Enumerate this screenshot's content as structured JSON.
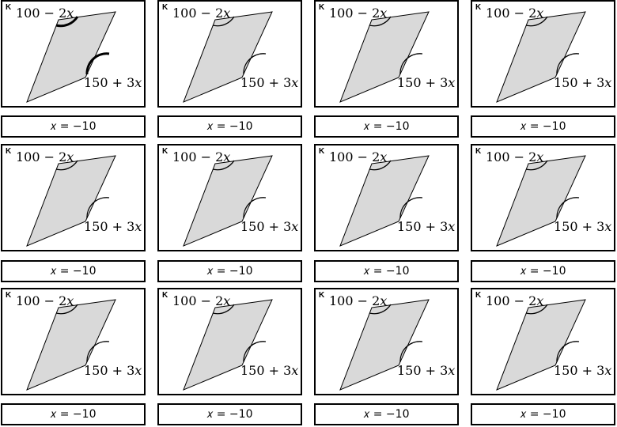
{
  "cards": [
    {
      "letter": "K",
      "angle_top": "100 − 2𝑥",
      "angle_bottom": "150 + 3𝑥",
      "answer": "𝑥 = −10"
    },
    {
      "letter": "K",
      "angle_top": "100 − 2𝑥",
      "angle_bottom": "150 + 3𝑥",
      "answer": "𝑥 = −10"
    },
    {
      "letter": "K",
      "angle_top": "100 − 2𝑥",
      "angle_bottom": "150 + 3𝑥",
      "answer": "𝑥 = −10"
    },
    {
      "letter": "K",
      "angle_top": "100 − 2𝑥",
      "angle_bottom": "150 + 3𝑥",
      "answer": "𝑥 = −10"
    },
    {
      "letter": "K",
      "angle_top": "100 − 2𝑥",
      "angle_bottom": "150 + 3𝑥",
      "answer": "𝑥 = −10"
    },
    {
      "letter": "K",
      "angle_top": "100 − 2𝑥",
      "angle_bottom": "150 + 3𝑥",
      "answer": "𝑥 = −10"
    },
    {
      "letter": "K",
      "angle_top": "100 − 2𝑥",
      "angle_bottom": "150 + 3𝑥",
      "answer": "𝑥 = −10"
    },
    {
      "letter": "K",
      "angle_top": "100 − 2𝑥",
      "angle_bottom": "150 + 3𝑥",
      "answer": "𝑥 = −10"
    },
    {
      "letter": "K",
      "angle_top": "100 − 2𝑥",
      "angle_bottom": "150 + 3𝑥",
      "answer": "𝑥 = −10"
    },
    {
      "letter": "K",
      "angle_top": "100 − 2𝑥",
      "angle_bottom": "150 + 3𝑥",
      "answer": "𝑥 = −10"
    },
    {
      "letter": "K",
      "angle_top": "100 − 2𝑥",
      "angle_bottom": "150 + 3𝑥",
      "answer": "𝑥 = −10"
    },
    {
      "letter": "K",
      "angle_top": "100 − 2𝑥",
      "angle_bottom": "150 + 3𝑥",
      "answer": "𝑥 = −10"
    }
  ],
  "colors": {
    "shape_fill": "#d9d9d9",
    "stroke": "#000000"
  }
}
